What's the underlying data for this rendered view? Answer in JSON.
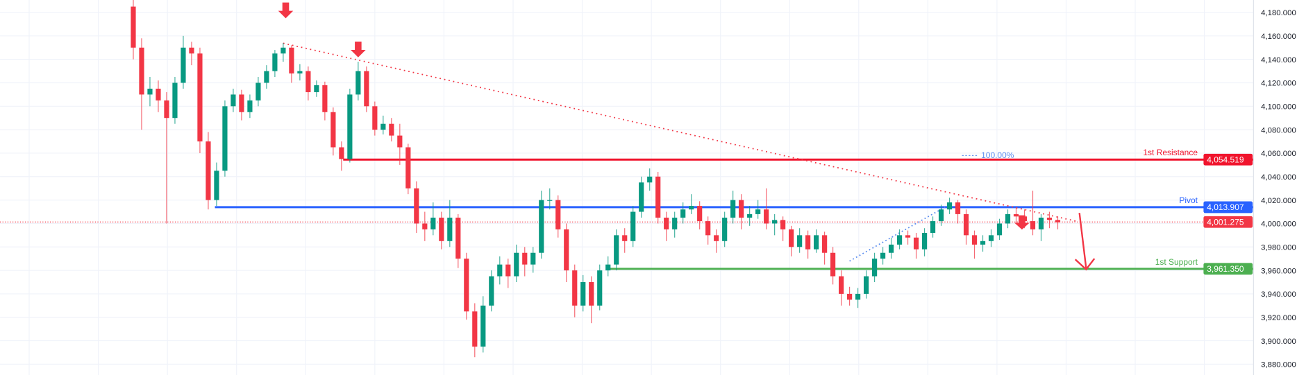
{
  "chart_data": {
    "type": "candlestick",
    "ylim": [
      3880,
      4180
    ],
    "y_ticks": [
      "4,180.000",
      "4,160.000",
      "4,140.000",
      "4,120.000",
      "4,100.000",
      "4,080.000",
      "4,060.000",
      "4,040.000",
      "4,020.000",
      "4,000.000",
      "3,980.000",
      "3,960.000",
      "3,940.000",
      "3,920.000",
      "3,900.000",
      "3,880.000"
    ],
    "y_tick_values": [
      4180,
      4160,
      4140,
      4120,
      4100,
      4080,
      4060,
      4040,
      4020,
      4000,
      3980,
      3960,
      3940,
      3920,
      3900,
      3880
    ],
    "grid": true,
    "colors": {
      "up": "#089981",
      "down": "#F23645",
      "resistance": "#F0142D",
      "pivot": "#2962FF",
      "support": "#4CAF50",
      "trendline": "#F23645",
      "fib": "#5B8DEF"
    },
    "ohlc_fields": [
      "open",
      "high",
      "low",
      "close"
    ],
    "candles": [
      [
        4185,
        4195,
        4140,
        4150
      ],
      [
        4150,
        4158,
        4080,
        4110
      ],
      [
        4110,
        4125,
        4100,
        4115
      ],
      [
        4115,
        4122,
        4095,
        4105
      ],
      [
        4105,
        4112,
        4000,
        4090
      ],
      [
        4090,
        4125,
        4085,
        4120
      ],
      [
        4120,
        4160,
        4115,
        4150
      ],
      [
        4150,
        4155,
        4135,
        4145
      ],
      [
        4145,
        4150,
        4060,
        4070
      ],
      [
        4070,
        4078,
        4012,
        4020
      ],
      [
        4020,
        4052,
        4015,
        4045
      ],
      [
        4045,
        4105,
        4040,
        4100
      ],
      [
        4100,
        4115,
        4095,
        4110
      ],
      [
        4110,
        4114,
        4088,
        4095
      ],
      [
        4095,
        4110,
        4090,
        4105
      ],
      [
        4105,
        4125,
        4100,
        4120
      ],
      [
        4120,
        4135,
        4115,
        4130
      ],
      [
        4130,
        4148,
        4125,
        4145
      ],
      [
        4145,
        4154,
        4138,
        4150
      ],
      [
        4150,
        4152,
        4120,
        4128
      ],
      [
        4128,
        4136,
        4122,
        4130
      ],
      [
        4130,
        4134,
        4105,
        4112
      ],
      [
        4112,
        4122,
        4108,
        4118
      ],
      [
        4118,
        4121,
        4088,
        4095
      ],
      [
        4095,
        4099,
        4058,
        4065
      ],
      [
        4065,
        4070,
        4045,
        4055
      ],
      [
        4055,
        4115,
        4052,
        4110
      ],
      [
        4110,
        4138,
        4105,
        4130
      ],
      [
        4130,
        4134,
        4095,
        4100
      ],
      [
        4100,
        4104,
        4075,
        4080
      ],
      [
        4080,
        4092,
        4076,
        4085
      ],
      [
        4085,
        4090,
        4070,
        4075
      ],
      [
        4075,
        4085,
        4050,
        4065
      ],
      [
        4065,
        4068,
        4025,
        4030
      ],
      [
        4030,
        4036,
        3992,
        4000
      ],
      [
        4000,
        4010,
        3985,
        3995
      ],
      [
        3995,
        4018,
        3990,
        4005
      ],
      [
        4005,
        4010,
        3978,
        3985
      ],
      [
        3985,
        4020,
        3980,
        4005
      ],
      [
        4005,
        4008,
        3962,
        3970
      ],
      [
        3970,
        3975,
        3918,
        3925
      ],
      [
        3925,
        3932,
        3886,
        3895
      ],
      [
        3895,
        3938,
        3890,
        3930
      ],
      [
        3930,
        3960,
        3925,
        3955
      ],
      [
        3955,
        3972,
        3948,
        3965
      ],
      [
        3965,
        3970,
        3945,
        3955
      ],
      [
        3955,
        3982,
        3950,
        3975
      ],
      [
        3975,
        3980,
        3955,
        3965
      ],
      [
        3965,
        3980,
        3958,
        3975
      ],
      [
        3975,
        4028,
        3970,
        4020
      ],
      [
        4020,
        4030,
        4012,
        4020
      ],
      [
        4020,
        4024,
        3988,
        3995
      ],
      [
        3995,
        4000,
        3950,
        3960
      ],
      [
        3960,
        3965,
        3920,
        3930
      ],
      [
        3930,
        3956,
        3925,
        3950
      ],
      [
        3950,
        3955,
        3915,
        3930
      ],
      [
        3930,
        3965,
        3926,
        3960
      ],
      [
        3960,
        3972,
        3955,
        3965
      ],
      [
        3965,
        3995,
        3960,
        3990
      ],
      [
        3990,
        3996,
        3975,
        3985
      ],
      [
        3985,
        4015,
        3980,
        4010
      ],
      [
        4010,
        4040,
        4005,
        4035
      ],
      [
        4035,
        4047,
        4028,
        4040
      ],
      [
        4040,
        4044,
        4000,
        4005
      ],
      [
        4005,
        4010,
        3985,
        3995
      ],
      [
        3995,
        4010,
        3988,
        4005
      ],
      [
        4005,
        4018,
        4000,
        4012
      ],
      [
        4012,
        4025,
        4008,
        4015
      ],
      [
        4015,
        4019,
        3995,
        4002
      ],
      [
        4002,
        4006,
        3982,
        3990
      ],
      [
        3990,
        3995,
        3975,
        3985
      ],
      [
        3985,
        4010,
        3980,
        4005
      ],
      [
        4005,
        4028,
        4000,
        4020
      ],
      [
        4020,
        4025,
        3995,
        4005
      ],
      [
        4005,
        4015,
        3998,
        4008
      ],
      [
        4008,
        4020,
        4004,
        4012
      ],
      [
        4012,
        4030,
        3995,
        4000
      ],
      [
        4000,
        4008,
        3990,
        4003
      ],
      [
        4003,
        4006,
        3985,
        3995
      ],
      [
        3995,
        3998,
        3972,
        3980
      ],
      [
        3980,
        3996,
        3975,
        3990
      ],
      [
        3990,
        3994,
        3970,
        3978
      ],
      [
        3978,
        3995,
        3975,
        3990
      ],
      [
        3990,
        3993,
        3965,
        3975
      ],
      [
        3975,
        3980,
        3948,
        3955
      ],
      [
        3955,
        3960,
        3930,
        3940
      ],
      [
        3940,
        3946,
        3930,
        3935
      ],
      [
        3935,
        3945,
        3928,
        3940
      ],
      [
        3940,
        3960,
        3936,
        3955
      ],
      [
        3955,
        3975,
        3950,
        3970
      ],
      [
        3970,
        3980,
        3965,
        3975
      ],
      [
        3975,
        3988,
        3970,
        3982
      ],
      [
        3982,
        3995,
        3978,
        3990
      ],
      [
        3990,
        3994,
        3982,
        3988
      ],
      [
        3988,
        3992,
        3970,
        3978
      ],
      [
        3978,
        3996,
        3972,
        3992
      ],
      [
        3992,
        4006,
        3988,
        4002
      ],
      [
        4002,
        4016,
        3998,
        4012
      ],
      [
        4012,
        4022,
        4008,
        4018
      ],
      [
        4018,
        4020,
        4000,
        4008
      ],
      [
        4008,
        4012,
        3982,
        3990
      ],
      [
        3990,
        3994,
        3970,
        3982
      ],
      [
        3982,
        3990,
        3976,
        3985
      ],
      [
        3985,
        3995,
        3980,
        3990
      ],
      [
        3990,
        4004,
        3986,
        4000
      ],
      [
        4000,
        4012,
        3996,
        4008
      ],
      [
        4008,
        4013,
        4000,
        4006
      ],
      [
        4006,
        4012,
        3996,
        4002
      ],
      [
        4002,
        4028,
        3990,
        3995
      ],
      [
        3995,
        4008,
        3985,
        4005
      ],
      [
        4005,
        4010,
        3996,
        4003
      ],
      [
        4003,
        4006,
        3995,
        4001
      ]
    ],
    "levels": [
      {
        "label": "1st Resistance",
        "value": 4054.519,
        "price_text": "4,054.519",
        "color": "#F0142D"
      },
      {
        "label": "Pivot",
        "value": 4013.907,
        "price_text": "4,013.907",
        "color": "#2962FF"
      },
      {
        "label": "1st Support",
        "value": 3961.35,
        "price_text": "3,961.350",
        "color": "#4CAF50"
      }
    ],
    "current_price": {
      "value": 4001.275,
      "price_text": "4,001.275",
      "color": "#F23645"
    },
    "fib_label": "100.00%"
  }
}
